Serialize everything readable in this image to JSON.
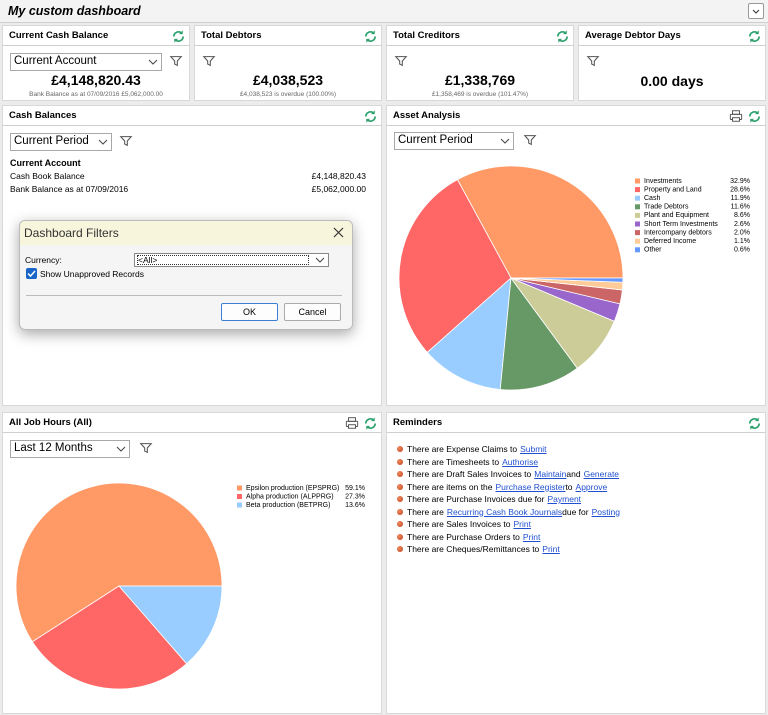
{
  "header": {
    "title": "My custom dashboard"
  },
  "cards": [
    {
      "title": "Current Cash Balance",
      "select": "Current Account",
      "value": "£4,148,820.43",
      "note": "Bank Balance as at 07/09/2016 £5,062,000.00"
    },
    {
      "title": "Total Debtors",
      "value": "£4,038,523",
      "note": "£4,038,523 is overdue (100.00%)"
    },
    {
      "title": "Total Creditors",
      "value": "£1,338,769",
      "note": "£1,358,469 is overdue (101.47%)"
    },
    {
      "title": "Average Debtor Days",
      "value": "0.00 days"
    }
  ],
  "cash_balances": {
    "title": "Cash Balances",
    "select": "Current Period",
    "heading": "Current Account",
    "rows": [
      [
        "Cash Book Balance",
        "£4,148,820.43"
      ],
      [
        "Bank Balance as at 07/09/2016",
        "£5,062,000.00"
      ]
    ]
  },
  "asset_analysis": {
    "title": "Asset Analysis",
    "select": "Current Period",
    "chart": {
      "type": "pie",
      "categories": [
        "Investments",
        "Property and Land",
        "Cash",
        "Trade Debtors",
        "Plant and Equipment",
        "Short Term Investments",
        "Intercompany debtors",
        "Deferred Income",
        "Other"
      ],
      "values": [
        32.9,
        28.6,
        11.9,
        11.6,
        8.6,
        2.6,
        2.0,
        1.1,
        0.6
      ],
      "value_labels": [
        "32.9%",
        "28.6%",
        "11.9%",
        "11.6%",
        "8.6%",
        "2.6%",
        "2.0%",
        "1.1%",
        "0.6%"
      ],
      "colors": [
        "#ff9966",
        "#ff6666",
        "#99ccff",
        "#669966",
        "#cccc99",
        "#9966cc",
        "#cc6666",
        "#ffcc99",
        "#6699ff"
      ]
    }
  },
  "job_hours": {
    "title": "All Job Hours (All)",
    "select": "Last 12 Months",
    "chart": {
      "type": "pie",
      "categories": [
        "Epsilon production (EPSPRG)",
        "Alpha production (ALPPRG)",
        "Beta production (BETPRG)"
      ],
      "values": [
        59.1,
        27.3,
        13.6
      ],
      "value_labels": [
        "59.1%",
        "27.3%",
        "13.6%"
      ],
      "colors": [
        "#ff9966",
        "#ff6666",
        "#99ccff"
      ]
    }
  },
  "reminders": {
    "title": "Reminders",
    "items": [
      [
        {
          "text": "There are Expense Claims to"
        },
        {
          "link": "Submit"
        }
      ],
      [
        {
          "text": "There are Timesheets to"
        },
        {
          "link": "Authorise"
        }
      ],
      [
        {
          "text": "There are Draft Sales Invoices to"
        },
        {
          "link": "Maintain"
        },
        {
          "text": "and"
        },
        {
          "link": "Generate"
        }
      ],
      [
        {
          "text": "There are items on the"
        },
        {
          "link": "Purchase Register"
        },
        {
          "text": "to"
        },
        {
          "link": "Approve"
        }
      ],
      [
        {
          "text": "There are Purchase Invoices due for"
        },
        {
          "link": "Payment"
        }
      ],
      [
        {
          "text": "There are"
        },
        {
          "link": "Recurring Cash Book Journals"
        },
        {
          "text": "due for"
        },
        {
          "link": "Posting"
        }
      ],
      [
        {
          "text": "There are Sales Invoices to"
        },
        {
          "link": "Print"
        }
      ],
      [
        {
          "text": "There are Purchase Orders to"
        },
        {
          "link": "Print"
        }
      ],
      [
        {
          "text": "There are Cheques/Remittances to"
        },
        {
          "link": "Print"
        }
      ]
    ]
  },
  "dialog": {
    "title": "Dashboard Filters",
    "currency_label": "Currency:",
    "currency_value": "<All>",
    "checkbox_label": "Show Unapproved Records",
    "ok": "OK",
    "cancel": "Cancel"
  }
}
